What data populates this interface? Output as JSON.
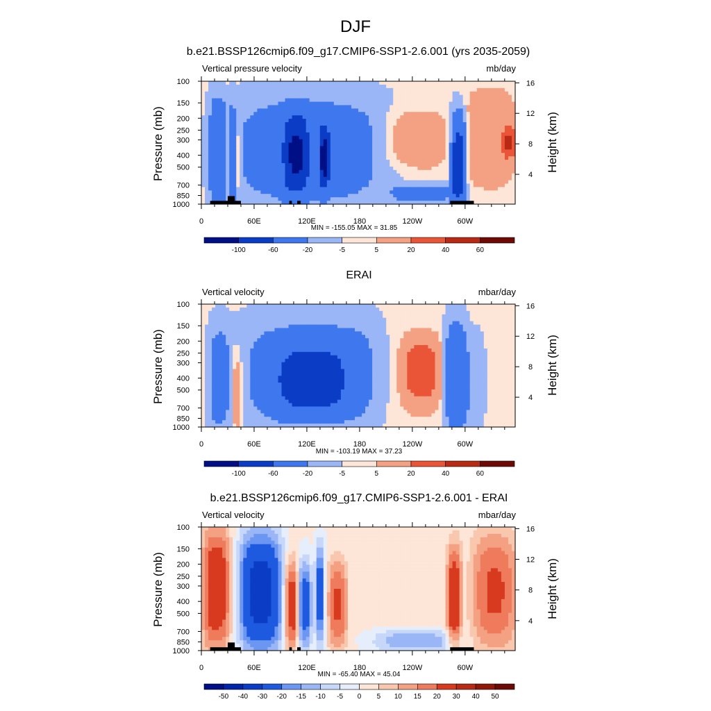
{
  "figure": {
    "title": "DJF"
  },
  "colors": {
    "palette_main": [
      "#000f85",
      "#0224a8",
      "#0b3cc5",
      "#1e5ae0",
      "#3f78ee",
      "#6b97f3",
      "#9bb6f6",
      "#c6d7fa",
      "#e6eefc",
      "#fde5d7",
      "#f9c7ad",
      "#f4a183",
      "#ef7b5d",
      "#ea5538",
      "#d83a1f",
      "#b82a14",
      "#92170b",
      "#6e0a06"
    ],
    "palette_diff": [
      "#000f85",
      "#0224a8",
      "#0b3cc5",
      "#1e5ae0",
      "#3f78ee",
      "#6b97f3",
      "#9bb6f6",
      "#c6d7fa",
      "#e6eefc",
      "#fde5d7",
      "#f9c7ad",
      "#f4a183",
      "#ef7b5d",
      "#ea5538",
      "#d83a1f",
      "#b82a14",
      "#92170b",
      "#6e0a06"
    ]
  },
  "panels": [
    {
      "title": "b.e21.BSSP126cmip6.f09_g17.CMIP6-SSP1-2.6.001 (yrs 2035-2059)",
      "left_label": "Vertical pressure velocity",
      "right_label": "mb/day",
      "y_axis_label": "Pressure (mb)",
      "y2_axis_label": "Height (km)",
      "minmax": "MIN = -155.05  MAX =  31.85",
      "colorbar_labels": [
        "-100",
        "-60",
        "-20",
        "-5",
        "5",
        "20",
        "40",
        "60"
      ]
    },
    {
      "title": "ERAI",
      "left_label": "Vertical velocity",
      "right_label": "mbar/day",
      "y_axis_label": "Pressure (mb)",
      "y2_axis_label": "Height (km)",
      "minmax": "MIN = -103.19  MAX =  37.23",
      "colorbar_labels": [
        "-100",
        "-60",
        "-20",
        "-5",
        "5",
        "20",
        "40",
        "60"
      ]
    },
    {
      "title": "b.e21.BSSP126cmip6.f09_g17.CMIP6-SSP1-2.6.001 - ERAI",
      "left_label": "Vertical velocity",
      "right_label": "mbar/day",
      "y_axis_label": "Pressure (mb)",
      "y2_axis_label": "Height (km)",
      "minmax": "MIN = -65.40  MAX =  45.04",
      "colorbar_labels": [
        "-50",
        "-40",
        "-30",
        "-20",
        "-15",
        "-10",
        "-5",
        "0",
        "5",
        "10",
        "15",
        "20",
        "30",
        "40",
        "50"
      ]
    }
  ],
  "chart_data": [
    {
      "type": "heatmap",
      "title": "b.e21.BSSP126cmip6.f09_g17.CMIP6-SSP1-2.6.001 (yrs 2035-2059)",
      "xlabel": "",
      "ylabel": "Pressure (mb)",
      "y2label": "Height (km)",
      "x_ticks": [
        "0",
        "60E",
        "120E",
        "180",
        "120W",
        "60W"
      ],
      "x_tick_values": [
        0,
        60,
        120,
        180,
        240,
        300
      ],
      "xlim": [
        0,
        357
      ],
      "y_ticks": [
        100,
        150,
        200,
        250,
        300,
        400,
        500,
        700,
        850,
        1000
      ],
      "ylim": [
        1000,
        100
      ],
      "y_scale": "log",
      "y2_ticks": [
        4,
        8,
        12,
        16
      ],
      "min": -155.05,
      "max": 31.85,
      "levels": [
        -100,
        -60,
        -20,
        -5,
        5,
        20,
        40,
        60
      ],
      "units": "mb/day",
      "features": [
        {
          "lon": [
            10,
            28
          ],
          "p": [
            150,
            1000
          ],
          "value": -40
        },
        {
          "lon": [
            28,
            31
          ],
          "p": [
            150,
            1000
          ],
          "value": 10
        },
        {
          "lon": [
            33,
            38
          ],
          "p": [
            180,
            1000
          ],
          "value": -35
        },
        {
          "lon": [
            38,
            45
          ],
          "p": [
            200,
            800
          ],
          "value": 15
        },
        {
          "lon": [
            45,
            200
          ],
          "p": [
            150,
            900
          ],
          "value": -35
        },
        {
          "lon": [
            95,
            120
          ],
          "p": [
            200,
            800
          ],
          "value": -70
        },
        {
          "lon": [
            135,
            145
          ],
          "p": [
            250,
            700
          ],
          "value": -80
        },
        {
          "lon": [
            210,
            275
          ],
          "p": [
            180,
            500
          ],
          "value": 22
        },
        {
          "lon": [
            220,
            285
          ],
          "p": [
            700,
            950
          ],
          "value": -30
        },
        {
          "lon": [
            285,
            300
          ],
          "p": [
            200,
            1000
          ],
          "value": -80
        },
        {
          "lon": [
            300,
            357
          ],
          "p": [
            120,
            700
          ],
          "value": 20
        },
        {
          "lon": [
            345,
            357
          ],
          "p": [
            250,
            400
          ],
          "value": 35
        }
      ]
    },
    {
      "type": "heatmap",
      "title": "ERAI",
      "xlabel": "",
      "ylabel": "Pressure (mb)",
      "y2label": "Height (km)",
      "x_ticks": [
        "0",
        "60E",
        "120E",
        "180",
        "120W",
        "60W"
      ],
      "x_tick_values": [
        0,
        60,
        120,
        180,
        240,
        300
      ],
      "xlim": [
        0,
        357
      ],
      "y_ticks": [
        100,
        150,
        200,
        250,
        300,
        400,
        500,
        700,
        850,
        1000
      ],
      "ylim": [
        1000,
        100
      ],
      "y_scale": "log",
      "y2_ticks": [
        4,
        8,
        12,
        16
      ],
      "min": -103.19,
      "max": 37.23,
      "levels": [
        -100,
        -60,
        -20,
        -5,
        5,
        20,
        40,
        60
      ],
      "units": "mbar/day",
      "features": [
        {
          "lon": [
            10,
            30
          ],
          "p": [
            170,
            950
          ],
          "value": -30
        },
        {
          "lon": [
            36,
            46
          ],
          "p": [
            250,
            1000
          ],
          "value": 25
        },
        {
          "lon": [
            55,
            200
          ],
          "p": [
            150,
            900
          ],
          "value": -35
        },
        {
          "lon": [
            90,
            160
          ],
          "p": [
            250,
            700
          ],
          "value": -55
        },
        {
          "lon": [
            205,
            275
          ],
          "p": [
            150,
            950
          ],
          "value": 12
        },
        {
          "lon": [
            230,
            270
          ],
          "p": [
            200,
            600
          ],
          "value": 22
        },
        {
          "lon": [
            278,
            300
          ],
          "p": [
            150,
            1000
          ],
          "value": -45
        },
        {
          "lon": [
            300,
            320
          ],
          "p": [
            200,
            900
          ],
          "value": -15
        }
      ]
    },
    {
      "type": "heatmap",
      "title": "b.e21.BSSP126cmip6.f09_g17.CMIP6-SSP1-2.6.001 - ERAI",
      "xlabel": "",
      "ylabel": "Pressure (mb)",
      "y2label": "Height (km)",
      "x_ticks": [
        "0",
        "60E",
        "120E",
        "180",
        "120W",
        "60W"
      ],
      "x_tick_values": [
        0,
        60,
        120,
        180,
        240,
        300
      ],
      "xlim": [
        0,
        357
      ],
      "y_ticks": [
        100,
        150,
        200,
        250,
        300,
        400,
        500,
        700,
        850,
        1000
      ],
      "ylim": [
        1000,
        100
      ],
      "y_scale": "log",
      "y2_ticks": [
        4,
        8,
        12,
        16
      ],
      "min": -65.4,
      "max": 45.04,
      "levels": [
        -50,
        -40,
        -30,
        -20,
        -15,
        -10,
        -5,
        0,
        5,
        10,
        15,
        20,
        30,
        40,
        50
      ],
      "units": "mbar/day",
      "features": [
        {
          "lon": [
            2,
            32
          ],
          "p": [
            110,
            900
          ],
          "value": 25
        },
        {
          "lon": [
            45,
            90
          ],
          "p": [
            120,
            950
          ],
          "value": -35
        },
        {
          "lon": [
            95,
            110
          ],
          "p": [
            200,
            900
          ],
          "value": 25
        },
        {
          "lon": [
            110,
            125
          ],
          "p": [
            200,
            900
          ],
          "value": -25
        },
        {
          "lon": [
            130,
            140
          ],
          "p": [
            150,
            800
          ],
          "value": -25
        },
        {
          "lon": [
            145,
            165
          ],
          "p": [
            200,
            900
          ],
          "value": 20
        },
        {
          "lon": [
            200,
            285
          ],
          "p": [
            700,
            1000
          ],
          "value": -15
        },
        {
          "lon": [
            280,
            295
          ],
          "p": [
            150,
            900
          ],
          "value": 25
        },
        {
          "lon": [
            310,
            357
          ],
          "p": [
            120,
            900
          ],
          "value": 20
        }
      ]
    }
  ]
}
